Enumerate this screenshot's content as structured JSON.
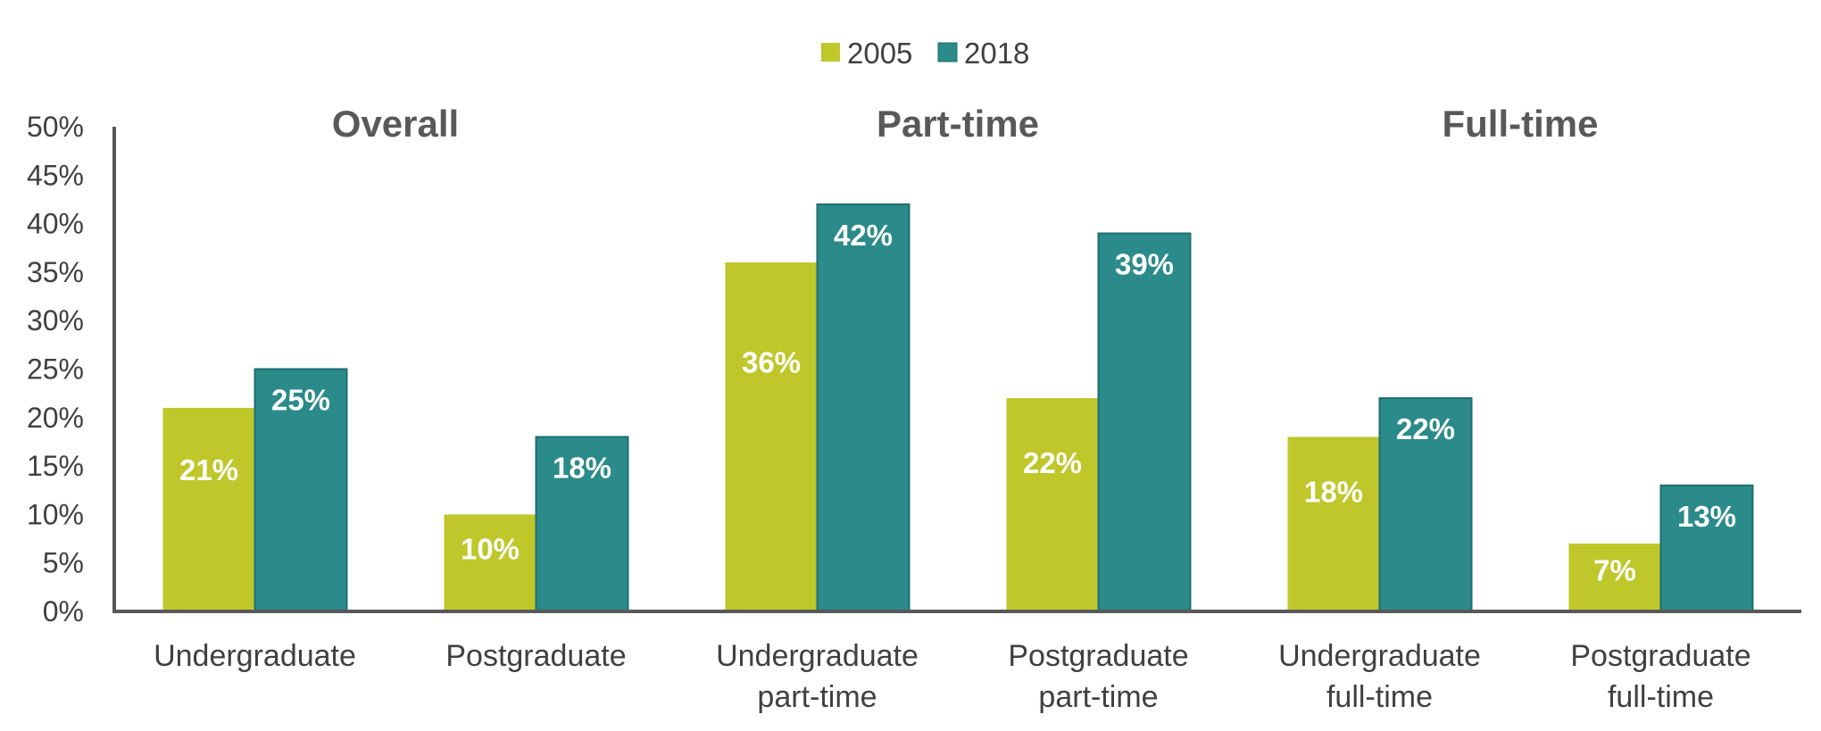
{
  "chart_data": {
    "type": "bar",
    "categories": [
      [
        "Undergraduate"
      ],
      [
        "Postgraduate"
      ],
      [
        "Undergraduate",
        "part-time"
      ],
      [
        "Postgraduate",
        "part-time"
      ],
      [
        "Undergraduate",
        "full-time"
      ],
      [
        "Postgraduate",
        "full-time"
      ]
    ],
    "groups": [
      {
        "title": "Overall",
        "categories": [
          0,
          1
        ]
      },
      {
        "title": "Part-time",
        "categories": [
          2,
          3
        ]
      },
      {
        "title": "Full-time",
        "categories": [
          4,
          5
        ]
      }
    ],
    "series": [
      {
        "name": "2005",
        "color": "#bfc72a",
        "values": [
          21,
          10,
          36,
          22,
          18,
          7
        ]
      },
      {
        "name": "2018",
        "color": "#2b8a8a",
        "values": [
          25,
          18,
          42,
          39,
          22,
          13
        ]
      }
    ],
    "data_labels": [
      [
        "21%",
        "10%",
        "36%",
        "22%",
        "18%",
        "7%"
      ],
      [
        "25%",
        "18%",
        "42%",
        "39%",
        "22%",
        "13%"
      ]
    ],
    "ylim": [
      0,
      50
    ],
    "yticks": [
      0,
      5,
      10,
      15,
      20,
      25,
      30,
      35,
      40,
      45,
      50
    ],
    "ytick_labels": [
      "0%",
      "5%",
      "10%",
      "15%",
      "20%",
      "25%",
      "30%",
      "35%",
      "40%",
      "45%",
      "50%"
    ],
    "legend_position": "top-center",
    "grid": false,
    "bar_border_color": "#1f6f6f",
    "axis_color": "#595959"
  }
}
